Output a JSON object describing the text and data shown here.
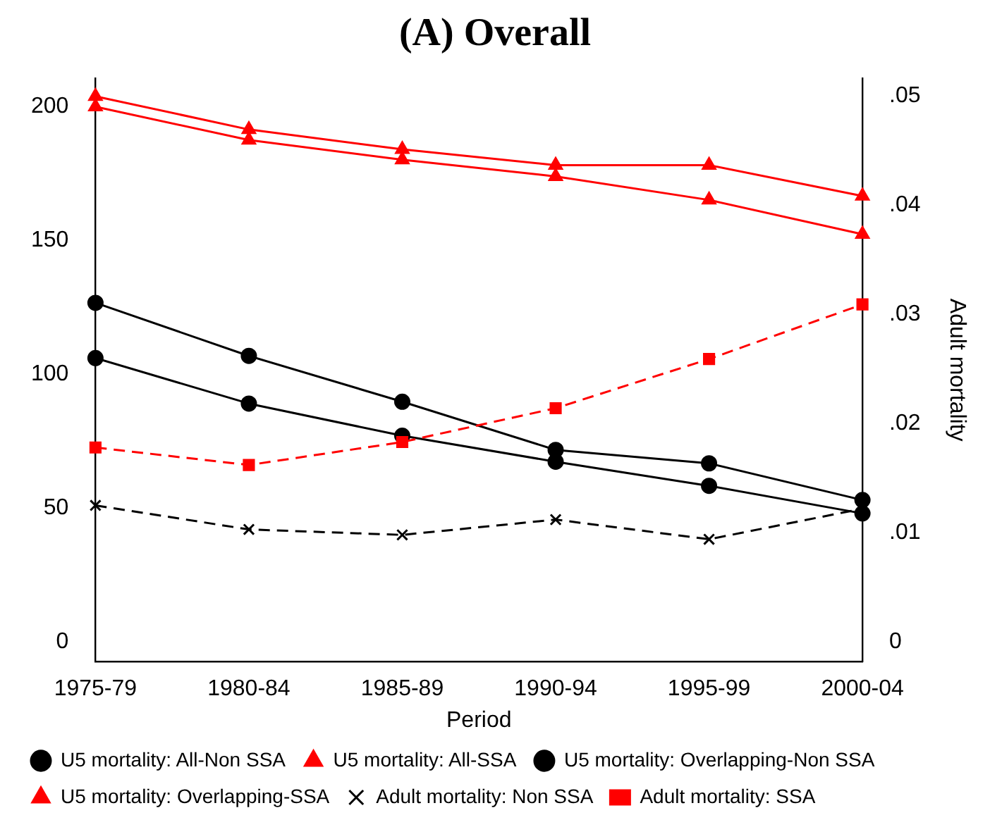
{
  "chart_data": {
    "type": "line",
    "title": "(A) Overall",
    "xlabel": "Period",
    "y2label": "Adult mortality",
    "categories": [
      "1975-79",
      "1980-84",
      "1985-89",
      "1990-94",
      "1995-99",
      "2000-04"
    ],
    "ylim": [
      -7.3,
      210.4
    ],
    "yticks": [
      0,
      50,
      100,
      150,
      200
    ],
    "y2lim": [
      -0.0018,
      0.0516
    ],
    "y2ticks": [
      0,
      {
        "value": 0.01,
        "label": ".01"
      },
      {
        "value": 0.02,
        "label": ".02"
      },
      {
        "value": 0.03,
        "label": ".03"
      },
      {
        "value": 0.04,
        "label": ".04"
      },
      {
        "value": 0.05,
        "label": ".05"
      }
    ],
    "grid": false,
    "legend": "bottom",
    "series": [
      {
        "name": "U5 mortality: All-Non SSA",
        "color": "#000000",
        "marker": "circle",
        "line_style": "solid",
        "values": [
          106,
          89,
          77,
          67.3,
          58.3,
          48
        ]
      },
      {
        "name": "U5 mortality: All-SSA",
        "color": "#ff0000",
        "marker": "triangle",
        "line_style": "solid",
        "values": [
          199.8,
          187.4,
          180,
          173.8,
          165,
          152.2
        ]
      },
      {
        "name": "U5 mortality: Overlapping-Non SSA",
        "color": "#000000",
        "marker": "circle",
        "line_style": "solid",
        "values": [
          126.6,
          106.8,
          89.7,
          71.7,
          66.7,
          53
        ]
      },
      {
        "name": "U5 mortality: Overlapping-SSA",
        "color": "#ff0000",
        "marker": "triangle",
        "line_style": "solid",
        "values": [
          203.7,
          191.3,
          183.9,
          178,
          178,
          166.5
        ]
      },
      {
        "name": "Adult mortality: Non SSA",
        "color": "#000000",
        "marker": "cross",
        "line_style": "dashed",
        "axis": "y2",
        "values": [
          0.0125,
          0.0103,
          0.0098,
          0.0112,
          0.0094,
          0.0122
        ]
      },
      {
        "name": "Adult mortality: SSA",
        "color": "#ff0000",
        "marker": "square",
        "line_style": "dashed",
        "axis": "y2",
        "values": [
          0.0178,
          0.0162,
          0.0183,
          0.0214,
          0.0259,
          0.0309
        ]
      }
    ]
  }
}
